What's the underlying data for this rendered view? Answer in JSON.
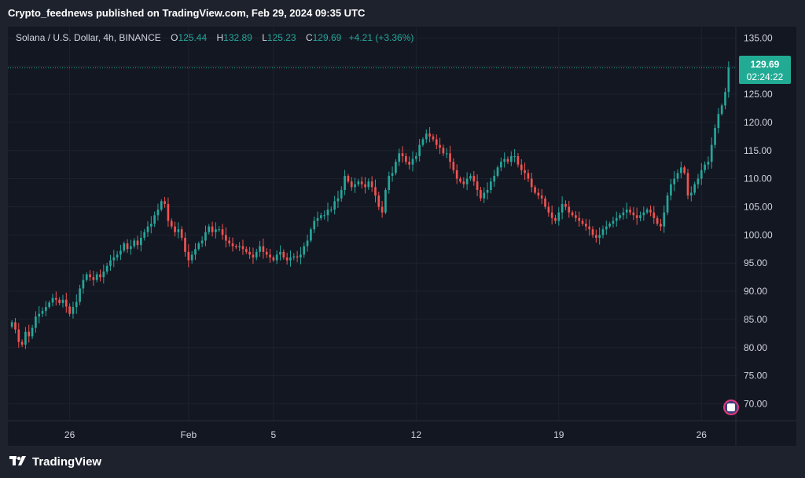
{
  "header": {
    "published": "Crypto_feednews published on TradingView.com, Feb 29, 2024 09:35 UTC"
  },
  "legend": {
    "symbol": "Solana / U.S. Dollar, 4h, BINANCE",
    "open_label": "O",
    "open": "125.44",
    "high_label": "H",
    "high": "132.89",
    "low_label": "L",
    "low": "125.23",
    "close_label": "C",
    "close": "129.69",
    "change": "+4.21 (+3.36%)"
  },
  "price_tag": {
    "price": "129.69",
    "countdown": "02:24:22"
  },
  "footer": {
    "brand": "TradingView"
  },
  "colors": {
    "up": "#26a69a",
    "down": "#ef5350",
    "bg": "#131722",
    "grid": "#1e222d",
    "axis_text": "#d1d4dc",
    "last_price": "#22ab94"
  },
  "icons": {
    "brand": "tradingview-logo-icon",
    "flag": "us-flag-icon"
  },
  "chart_data": {
    "type": "candlestick",
    "timeframe": "4h",
    "ylim": [
      67,
      137
    ],
    "y_ticks": [
      70,
      75,
      80,
      85,
      90,
      95,
      100,
      105,
      110,
      115,
      120,
      125,
      130,
      135
    ],
    "y_tick_labels": [
      "70.00",
      "75.00",
      "80.00",
      "85.00",
      "90.00",
      "95.00",
      "100.00",
      "105.00",
      "110.00",
      "115.00",
      "120.00",
      "125.00",
      "",
      "135.00"
    ],
    "x_ticks": [
      "26",
      "Feb",
      "5",
      "12",
      "19",
      "26"
    ],
    "x_tick_index": [
      17,
      52,
      77,
      119,
      161,
      203
    ],
    "last_price": 129.69,
    "closes": [
      84.5,
      83.2,
      81.0,
      80.5,
      82.8,
      82.0,
      83.5,
      85.5,
      86.0,
      86.5,
      87.2,
      88.0,
      88.8,
      88.5,
      87.9,
      88.5,
      87.3,
      86.0,
      87.2,
      88.1,
      90.5,
      92.0,
      93.0,
      92.5,
      92.0,
      93.0,
      92.5,
      93.5,
      94.5,
      95.5,
      96.0,
      96.5,
      97.2,
      98.5,
      97.5,
      98.0,
      99.0,
      98.2,
      99.5,
      100.5,
      101.5,
      102.0,
      103.5,
      104.5,
      106.0,
      105.5,
      102.5,
      101.5,
      100.5,
      101.0,
      99.5,
      97.0,
      95.5,
      96.5,
      97.5,
      98.5,
      99.0,
      100.5,
      101.5,
      100.5,
      101.0,
      101.0,
      100.0,
      99.0,
      98.5,
      98.0,
      97.8,
      98.0,
      97.5,
      97.0,
      96.5,
      96.0,
      97.0,
      98.0,
      97.0,
      96.5,
      96.0,
      95.5,
      96.5,
      97.0,
      96.0,
      95.5,
      96.0,
      96.2,
      96.0,
      96.5,
      98.0,
      99.0,
      101.0,
      102.5,
      103.0,
      103.5,
      103.5,
      104.5,
      104.5,
      106.0,
      106.5,
      108.0,
      110.5,
      109.5,
      108.5,
      109.0,
      109.5,
      109.0,
      108.5,
      109.5,
      108.5,
      107.0,
      105.0,
      104.0,
      108.0,
      110.5,
      111.0,
      113.0,
      114.5,
      114.0,
      113.0,
      112.5,
      113.5,
      114.0,
      116.0,
      117.0,
      118.0,
      117.5,
      117.0,
      116.0,
      115.5,
      114.5,
      114.5,
      113.0,
      111.5,
      110.0,
      109.5,
      109.0,
      110.0,
      110.5,
      109.5,
      108.0,
      106.5,
      107.5,
      108.0,
      109.5,
      110.5,
      112.0,
      113.0,
      113.5,
      113.0,
      114.0,
      114.0,
      112.5,
      111.5,
      111.0,
      110.0,
      108.5,
      107.5,
      107.0,
      106.5,
      105.0,
      104.0,
      103.0,
      102.5,
      104.0,
      105.5,
      105.0,
      104.0,
      103.5,
      103.0,
      102.5,
      102.0,
      101.5,
      101.0,
      100.0,
      99.5,
      100.0,
      101.0,
      101.5,
      102.0,
      102.5,
      103.0,
      103.5,
      104.0,
      104.5,
      104.0,
      103.5,
      103.0,
      103.5,
      104.0,
      104.5,
      104.0,
      103.0,
      102.0,
      101.5,
      104.0,
      107.0,
      109.0,
      110.0,
      111.0,
      112.0,
      111.0,
      107.0,
      107.5,
      109.0,
      110.0,
      111.5,
      112.5,
      113.0,
      116.0,
      119.0,
      121.5,
      123.0,
      125.4,
      129.69
    ]
  }
}
